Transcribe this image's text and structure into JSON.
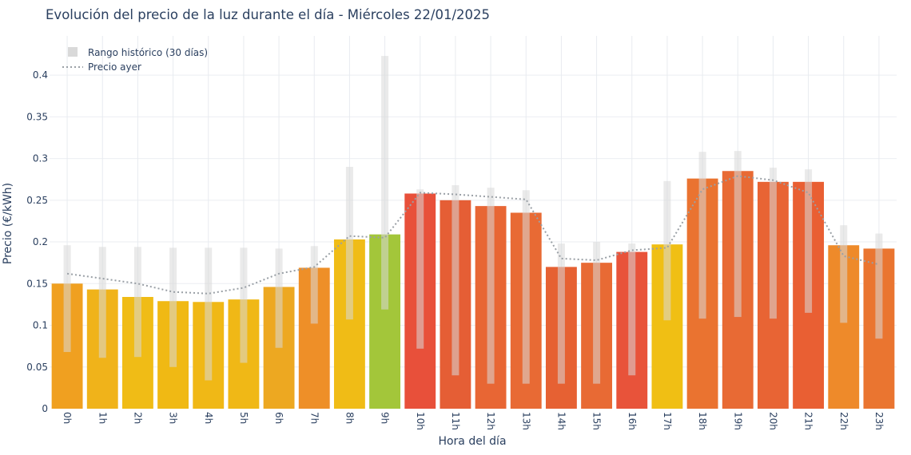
{
  "chart_data": {
    "type": "bar",
    "title": "Evolución del precio de la luz durante el día - Miércoles 22/01/2025",
    "xlabel": "Hora del día",
    "ylabel": "Precio (€/kWh)",
    "ylim": [
      0,
      0.447
    ],
    "yticks": [
      "0",
      "0.05",
      "0.1",
      "0.15",
      "0.2",
      "0.25",
      "0.3",
      "0.35",
      "0.4"
    ],
    "categories": [
      "0h",
      "1h",
      "2h",
      "3h",
      "4h",
      "5h",
      "6h",
      "7h",
      "8h",
      "9h",
      "10h",
      "11h",
      "12h",
      "13h",
      "14h",
      "15h",
      "16h",
      "17h",
      "18h",
      "19h",
      "20h",
      "21h",
      "22h",
      "23h"
    ],
    "values": [
      0.15,
      0.143,
      0.134,
      0.129,
      0.128,
      0.131,
      0.146,
      0.169,
      0.203,
      0.209,
      0.258,
      0.25,
      0.243,
      0.235,
      0.17,
      0.175,
      0.188,
      0.197,
      0.276,
      0.285,
      0.272,
      0.272,
      0.196,
      0.192
    ],
    "bar_colors": [
      "#f0a020",
      "#f0b31a",
      "#f0bc16",
      "#f0b914",
      "#f0b816",
      "#f0b816",
      "#eda821",
      "#ee8f28",
      "#f0bc16",
      "#a3c63a",
      "#e8503a",
      "#e55e35",
      "#e86634",
      "#e86a34",
      "#e66133",
      "#e86a34",
      "#e8533a",
      "#f0bf14",
      "#ea7330",
      "#e86a34",
      "#e86434",
      "#e95f33",
      "#ee8a2a",
      "#ea7530"
    ],
    "series": [
      {
        "name": "Rango histórico (30 días)",
        "color": "#d9d9d9",
        "low": [
          0.068,
          0.061,
          0.062,
          0.05,
          0.034,
          0.055,
          0.073,
          0.102,
          0.107,
          0.119,
          0.072,
          0.04,
          0.03,
          0.03,
          0.03,
          0.03,
          0.04,
          0.106,
          0.108,
          0.11,
          0.108,
          0.115,
          0.103,
          0.084
        ],
        "high": [
          0.196,
          0.194,
          0.194,
          0.193,
          0.193,
          0.193,
          0.192,
          0.195,
          0.29,
          0.423,
          0.263,
          0.268,
          0.265,
          0.262,
          0.198,
          0.2,
          0.198,
          0.273,
          0.308,
          0.309,
          0.289,
          0.287,
          0.22,
          0.21
        ]
      },
      {
        "name": "Precio ayer",
        "color": "#9aa0a6",
        "values": [
          0.162,
          0.156,
          0.15,
          0.14,
          0.138,
          0.145,
          0.162,
          0.17,
          0.207,
          0.205,
          0.259,
          0.257,
          0.254,
          0.251,
          0.18,
          0.178,
          0.19,
          0.193,
          0.263,
          0.279,
          0.274,
          0.259,
          0.183,
          0.173
        ]
      }
    ],
    "grid": true,
    "legend_position": "top-left"
  }
}
